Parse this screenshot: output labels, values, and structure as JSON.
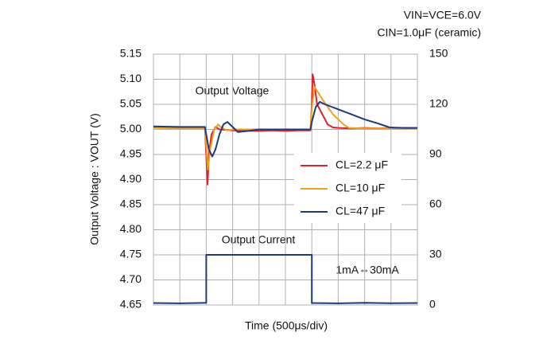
{
  "chart_data": {
    "type": "line",
    "annotations": [
      "VIN=VCE=6.0V",
      "CIN=1.0μF (ceramic)",
      "Output Voltage",
      "Output Current",
      "1mA⇔30mA"
    ],
    "xlabel": "Time (500μs/div)",
    "ylabel": "Output Voltage : VOUT (V)",
    "xlim": [
      0,
      10
    ],
    "xticks": [
      0,
      1,
      2,
      3,
      4,
      5,
      6,
      7,
      8,
      9,
      10
    ],
    "ylim": [
      4.65,
      5.15
    ],
    "yticks": [
      4.65,
      {
        "value": 4.7,
        "label": "4.70"
      },
      4.75,
      {
        "value": 4.8,
        "label": "4.80"
      },
      4.85,
      {
        "value": 4.9,
        "label": "4.90"
      },
      4.95,
      {
        "value": 5,
        "label": "5.00"
      },
      5.05,
      {
        "value": 5.1,
        "label": "5.10"
      },
      5.15
    ],
    "y2lim": [
      0,
      150
    ],
    "y2ticks": [
      0,
      30,
      60,
      90,
      120,
      150
    ],
    "grid": true,
    "legend": "inside-right",
    "series": [
      {
        "name": "CL=2.2 μF",
        "color": "#e0202a",
        "x": [
          0,
          0.5,
          1,
          1.5,
          1.95,
          2.0,
          2.05,
          2.1,
          2.2,
          2.35,
          2.5,
          3,
          3.5,
          4,
          4.5,
          5,
          5.5,
          5.95,
          6.0,
          6.03,
          6.1,
          6.2,
          6.4,
          6.6,
          6.8,
          7,
          7.5,
          8,
          8.5,
          9,
          9.5,
          10
        ],
        "values": [
          5.005,
          5.004,
          5.003,
          5.004,
          5.004,
          4.95,
          4.89,
          4.95,
          4.99,
          5.005,
          5.0,
          4.998,
          4.997,
          4.997,
          4.998,
          4.997,
          4.998,
          4.998,
          5.05,
          5.11,
          5.09,
          5.05,
          5.03,
          5.01,
          5.004,
          5.003,
          5.002,
          5.003,
          5.002,
          5.003,
          5.003,
          5.003
        ]
      },
      {
        "name": "CL=10 μF",
        "color": "#f0a020",
        "x": [
          0,
          1,
          1.95,
          2.0,
          2.06,
          2.15,
          2.3,
          2.45,
          2.6,
          2.8,
          3,
          4,
          5,
          5.95,
          6.0,
          6.1,
          6.4,
          6.8,
          7.2,
          7.4,
          8,
          9,
          10
        ],
        "values": [
          5.003,
          5.002,
          5.002,
          4.97,
          4.92,
          4.96,
          5.0,
          5.01,
          5.003,
          4.998,
          5.0,
          5.0,
          5.0,
          5.0,
          5.04,
          5.085,
          5.06,
          5.03,
          5.01,
          5.003,
          5.002,
          5.002,
          5.002
        ]
      },
      {
        "name": "CL=47 μF",
        "color": "#1f3a7a",
        "x": [
          0,
          1,
          1.95,
          2.0,
          2.1,
          2.23,
          2.35,
          2.5,
          2.65,
          2.8,
          3.0,
          3.2,
          3.6,
          4,
          5,
          5.95,
          6.0,
          6.15,
          6.3,
          6.5,
          7,
          7.5,
          8,
          8.5,
          8.95,
          9.5,
          10
        ],
        "values": [
          5.006,
          5.005,
          5.005,
          4.99,
          4.96,
          4.946,
          4.96,
          4.99,
          5.01,
          5.015,
          5.005,
          4.995,
          4.997,
          5.0,
          5.0,
          5.0,
          5.015,
          5.045,
          5.055,
          5.05,
          5.04,
          5.03,
          5.02,
          5.012,
          5.004,
          5.003,
          5.003
        ]
      },
      {
        "name": "Output Current",
        "color": "#1f3a7a",
        "axis": "y2",
        "x": [
          0,
          1,
          2,
          2,
          3,
          4,
          5,
          6,
          6,
          7,
          8,
          9,
          10
        ],
        "values": [
          1.2,
          1.0,
          1.3,
          30,
          30,
          30,
          30,
          30,
          1.2,
          1.0,
          1.3,
          1.1,
          1.2
        ]
      }
    ]
  }
}
